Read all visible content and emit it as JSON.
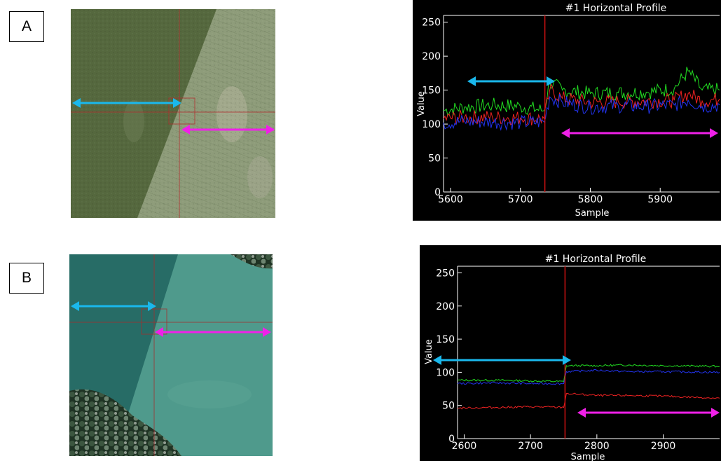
{
  "panels": [
    {
      "label": "A"
    },
    {
      "label": "B"
    }
  ],
  "colors": {
    "cyan_arrow": "#1ab8ec",
    "magenta_arrow": "#f020e8",
    "series_green": "#22dd22",
    "series_red": "#ee2222",
    "series_blue": "#2233ee",
    "cursor_line": "#cc1111"
  },
  "chart_data": [
    {
      "type": "line",
      "title": "#1 Horizontal Profile",
      "xlabel": "Sample",
      "ylabel": "Value",
      "xlim": [
        5590,
        5985
      ],
      "ylim": [
        0,
        260
      ],
      "xticks": [
        5600,
        5700,
        5800,
        5900
      ],
      "yticks": [
        0,
        50,
        100,
        150,
        200,
        250
      ],
      "grid": false,
      "cursor_x": 5735,
      "series": [
        {
          "color": "green",
          "x": [
            5590,
            5620,
            5660,
            5700,
            5734,
            5742,
            5760,
            5800,
            5840,
            5880,
            5920,
            5940,
            5960,
            5985
          ],
          "values": [
            120,
            125,
            128,
            126,
            120,
            162,
            150,
            145,
            146,
            147,
            152,
            178,
            150,
            150
          ]
        },
        {
          "color": "red",
          "x": [
            5590,
            5620,
            5660,
            5700,
            5734,
            5742,
            5760,
            5800,
            5840,
            5880,
            5920,
            5940,
            5960,
            5985
          ],
          "values": [
            108,
            110,
            110,
            109,
            108,
            150,
            138,
            132,
            133,
            134,
            135,
            145,
            134,
            137
          ]
        },
        {
          "color": "blue",
          "x": [
            5590,
            5620,
            5660,
            5700,
            5734,
            5742,
            5760,
            5800,
            5840,
            5880,
            5920,
            5940,
            5960,
            5985
          ],
          "values": [
            102,
            104,
            103,
            102,
            103,
            140,
            132,
            125,
            127,
            126,
            128,
            135,
            126,
            128
          ]
        }
      ]
    },
    {
      "type": "line",
      "title": "#1 Horizontal Profile",
      "xlabel": "Sample",
      "ylabel": "Value",
      "xlim": [
        2590,
        2985
      ],
      "ylim": [
        0,
        260
      ],
      "xticks": [
        2600,
        2700,
        2800,
        2900
      ],
      "yticks": [
        0,
        50,
        100,
        150,
        200,
        250
      ],
      "grid": false,
      "cursor_x": 2752,
      "series": [
        {
          "color": "green",
          "x": [
            2590,
            2650,
            2700,
            2750,
            2754,
            2800,
            2850,
            2900,
            2985
          ],
          "values": [
            88,
            88,
            87,
            86,
            110,
            110,
            111,
            110,
            109
          ]
        },
        {
          "color": "blue",
          "x": [
            2590,
            2650,
            2700,
            2750,
            2754,
            2800,
            2850,
            2900,
            2985
          ],
          "values": [
            83,
            84,
            83,
            83,
            101,
            103,
            101,
            101,
            100
          ]
        },
        {
          "color": "red",
          "x": [
            2590,
            2650,
            2700,
            2750,
            2754,
            2800,
            2850,
            2900,
            2985
          ],
          "values": [
            46,
            47,
            48,
            47,
            68,
            65,
            65,
            64,
            61
          ]
        }
      ]
    }
  ]
}
